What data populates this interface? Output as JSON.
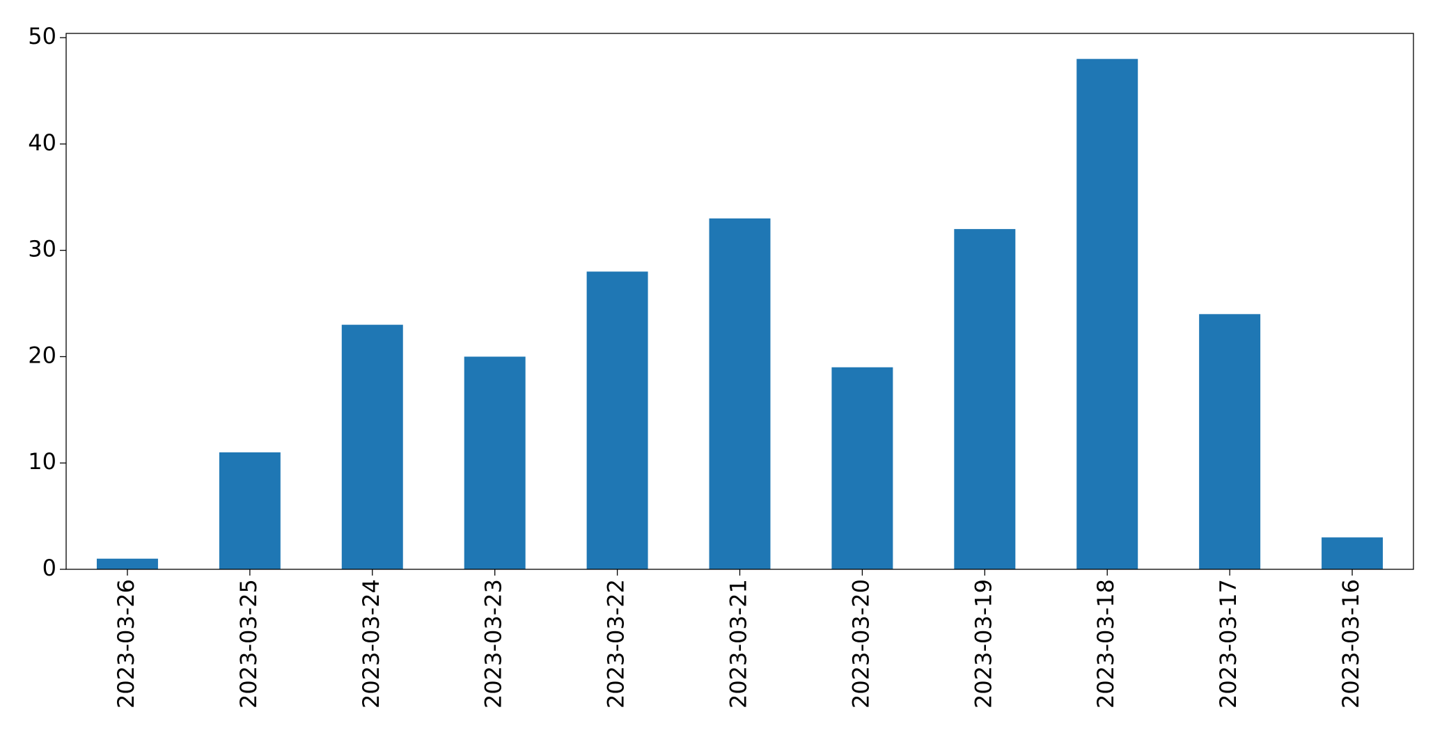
{
  "chart_data": {
    "type": "bar",
    "categories": [
      "2023-03-26",
      "2023-03-25",
      "2023-03-24",
      "2023-03-23",
      "2023-03-22",
      "2023-03-21",
      "2023-03-20",
      "2023-03-19",
      "2023-03-18",
      "2023-03-17",
      "2023-03-16"
    ],
    "values": [
      1,
      11,
      23,
      20,
      28,
      33,
      19,
      32,
      48,
      24,
      3
    ],
    "color": "#1f77b4",
    "ylim": [
      0,
      50.4
    ],
    "yticks": [
      0,
      10,
      20,
      30,
      40,
      50
    ],
    "grid": false
  }
}
